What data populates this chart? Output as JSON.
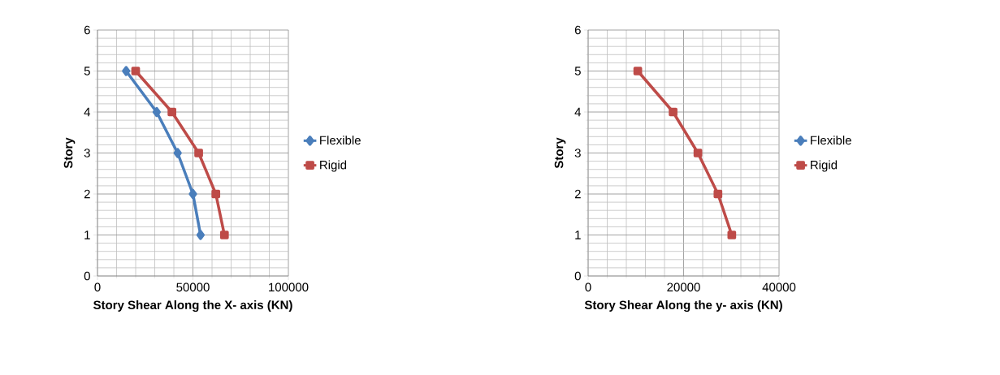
{
  "chart_data": [
    {
      "type": "line",
      "xlabel": "Story Shear Along the X- axis (KN)",
      "ylabel": "Story",
      "xlim": [
        0,
        100000
      ],
      "xticks": [
        0,
        50000,
        100000
      ],
      "ylim": [
        0,
        6
      ],
      "yticks": [
        0,
        1,
        2,
        3,
        4,
        5,
        6
      ],
      "grid": true,
      "legend": "right",
      "line_style": "solid",
      "series": [
        {
          "name": "Flexible",
          "color": "#4a7ebb",
          "marker": "diamond",
          "x": [
            54000,
            50000,
            42000,
            31000,
            15000
          ],
          "values": [
            1,
            2,
            3,
            4,
            5
          ]
        },
        {
          "name": "Rigid",
          "color": "#be4b48",
          "marker": "square",
          "x": [
            66500,
            62000,
            53000,
            39000,
            20000
          ],
          "values": [
            1,
            2,
            3,
            4,
            5
          ]
        }
      ]
    },
    {
      "type": "line",
      "xlabel": "Story Shear Along the y- axis (KN)",
      "ylabel": "Story",
      "xlim": [
        0,
        40000
      ],
      "xticks": [
        0,
        20000,
        40000
      ],
      "ylim": [
        0,
        6
      ],
      "yticks": [
        0,
        1,
        2,
        3,
        4,
        5,
        6
      ],
      "grid": true,
      "legend": "right",
      "line_style": "solid",
      "series": [
        {
          "name": "Flexible",
          "color": "#4a7ebb",
          "marker": "diamond",
          "values": [
            null,
            null,
            null,
            null,
            null
          ]
        },
        {
          "name": "Rigid",
          "color": "#be4b48",
          "marker": "square",
          "x": [
            30100,
            27200,
            23000,
            17800,
            10400
          ],
          "values": [
            1,
            2,
            3,
            4,
            5
          ]
        }
      ]
    }
  ]
}
